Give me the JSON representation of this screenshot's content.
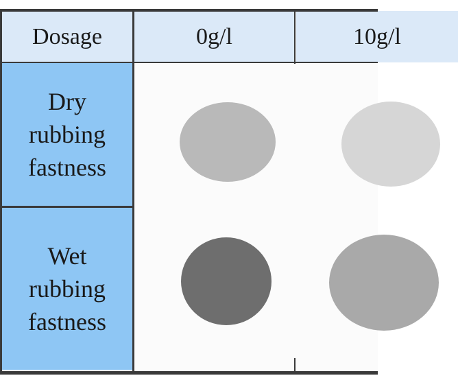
{
  "table": {
    "header": [
      "Dosage",
      "0g/l",
      "10g/l"
    ],
    "rows": [
      [
        "Dry rubbing fastness"
      ],
      [
        "Wet rubbing fastness"
      ]
    ]
  }
}
